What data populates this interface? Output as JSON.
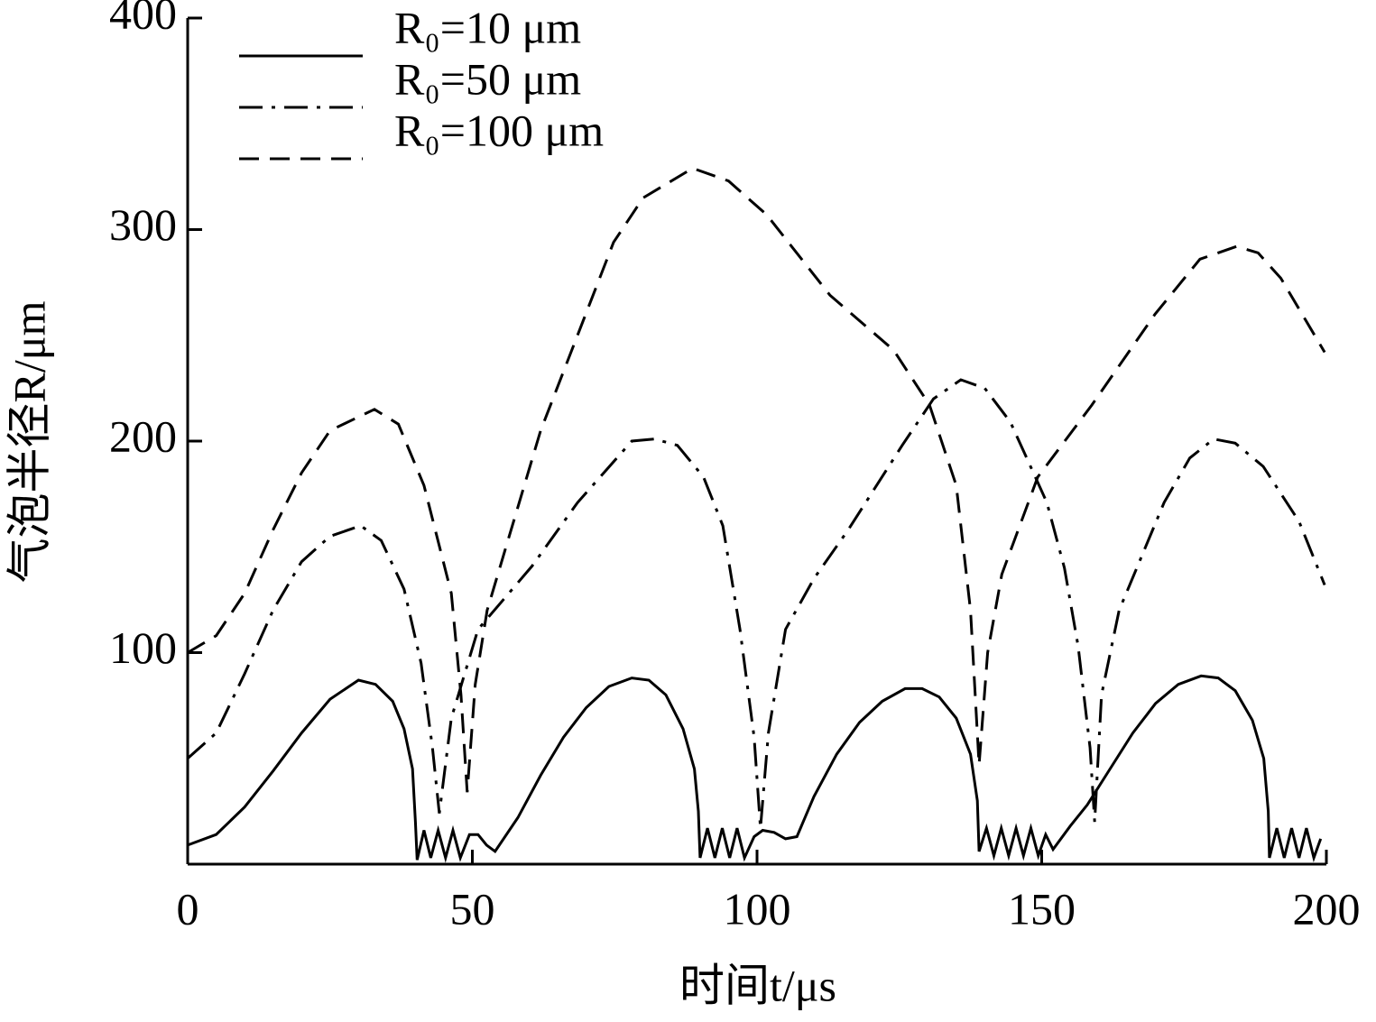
{
  "chart_data": {
    "type": "line",
    "xlabel": "时间t/μs",
    "ylabel": "气泡半径R/μm",
    "xlim": [
      0,
      200
    ],
    "ylim": [
      0,
      400
    ],
    "xticks": [
      0,
      50,
      100,
      150,
      200
    ],
    "yticks": [
      100,
      200,
      300,
      400
    ],
    "legend": "upper left",
    "series": [
      {
        "name": "R₀=10 μm",
        "color": "#000000",
        "dash": "solid",
        "x": [
          0,
          5,
          10,
          15,
          20,
          25,
          30,
          33,
          36,
          38,
          39.5,
          40,
          40.3,
          41.5,
          42.7,
          44,
          45.3,
          46.6,
          47.9,
          49.5,
          51,
          52.5,
          54,
          58,
          62,
          66,
          70,
          74,
          78,
          81,
          84,
          87,
          89,
          89.7,
          90,
          91.3,
          92.6,
          93.9,
          95.2,
          96.5,
          97.8,
          99.5,
          101,
          103,
          105,
          107,
          110,
          114,
          118,
          122,
          126,
          129,
          132,
          135,
          137.5,
          138.7,
          139,
          140.3,
          141.6,
          142.9,
          144.2,
          145.5,
          146.8,
          148.1,
          149.4,
          150.7,
          152,
          155,
          158,
          162,
          166,
          170,
          174,
          178,
          181,
          184,
          187,
          189,
          189.8,
          190,
          191.3,
          192.6,
          193.9,
          195.2,
          196.5,
          197.8,
          199
        ],
        "values": [
          9,
          14,
          27,
          44,
          62,
          78,
          87,
          85,
          77,
          64,
          45,
          20,
          2,
          16,
          3,
          16,
          3,
          16,
          3,
          14,
          14,
          9,
          6,
          22,
          42,
          60,
          74,
          84,
          88,
          87,
          80,
          64,
          45,
          25,
          3,
          17,
          3,
          17,
          3,
          17,
          3,
          13,
          16,
          15,
          12,
          13,
          32,
          52,
          67,
          77,
          83,
          83,
          79,
          69,
          52,
          30,
          6,
          17,
          4,
          17,
          4,
          17,
          4,
          17,
          4,
          14,
          7,
          18,
          28,
          45,
          62,
          76,
          85,
          89,
          88,
          82,
          68,
          50,
          25,
          3,
          17,
          3,
          17,
          3,
          17,
          3,
          12
        ]
      },
      {
        "name": "R₀=50 μm",
        "color": "#000000",
        "dash": "dashdot",
        "x": [
          0,
          5,
          10,
          15,
          20,
          25,
          30.4,
          34,
          38,
          41,
          43,
          44.2,
          46.3,
          51,
          60.5,
          68.5,
          78,
          82,
          86,
          90.6,
          94,
          97,
          99.5,
          100.6,
          102,
          105,
          110,
          116,
          125.5,
          131,
          135.8,
          140,
          144.5,
          150.9,
          154,
          156.4,
          158.5,
          159.3,
          160.5,
          163.6,
          171.5,
          176,
          180.2,
          184,
          188.9,
          195.2,
          199.7
        ],
        "values": [
          50,
          62,
          90,
          120,
          143,
          155,
          160,
          153,
          130,
          95,
          55,
          24,
          69,
          111,
          141,
          171,
          200,
          201,
          198,
          183,
          160,
          111,
          60,
          17,
          62,
          111,
          135,
          158,
          198,
          220,
          229,
          225,
          209,
          171,
          140,
          103,
          55,
          20,
          80,
          120,
          171,
          192,
          201,
          199,
          188,
          162,
          132
        ]
      },
      {
        "name": "R₀=100 μm",
        "color": "#000000",
        "dash": "dashed",
        "x": [
          0,
          5,
          10,
          15,
          20,
          25,
          32.8,
          37,
          41.5,
          46.3,
          48,
          49.1,
          50.5,
          52.6,
          62,
          74.8,
          80,
          88.7,
          95,
          101.7,
          112.8,
          124,
          130.3,
          135,
          137.5,
          139,
          140.5,
          143,
          149.3,
          158.8,
          169.9,
          177.8,
          184.2,
          188,
          192,
          199.7
        ],
        "values": [
          100,
          108,
          128,
          158,
          185,
          205,
          215,
          208,
          179,
          128,
          80,
          34,
          85,
          120,
          205,
          294,
          315,
          329,
          323,
          307,
          269,
          243,
          217,
          179,
          120,
          47,
          100,
          137,
          183,
          217,
          260,
          286,
          292,
          289,
          277,
          242
        ]
      }
    ]
  }
}
